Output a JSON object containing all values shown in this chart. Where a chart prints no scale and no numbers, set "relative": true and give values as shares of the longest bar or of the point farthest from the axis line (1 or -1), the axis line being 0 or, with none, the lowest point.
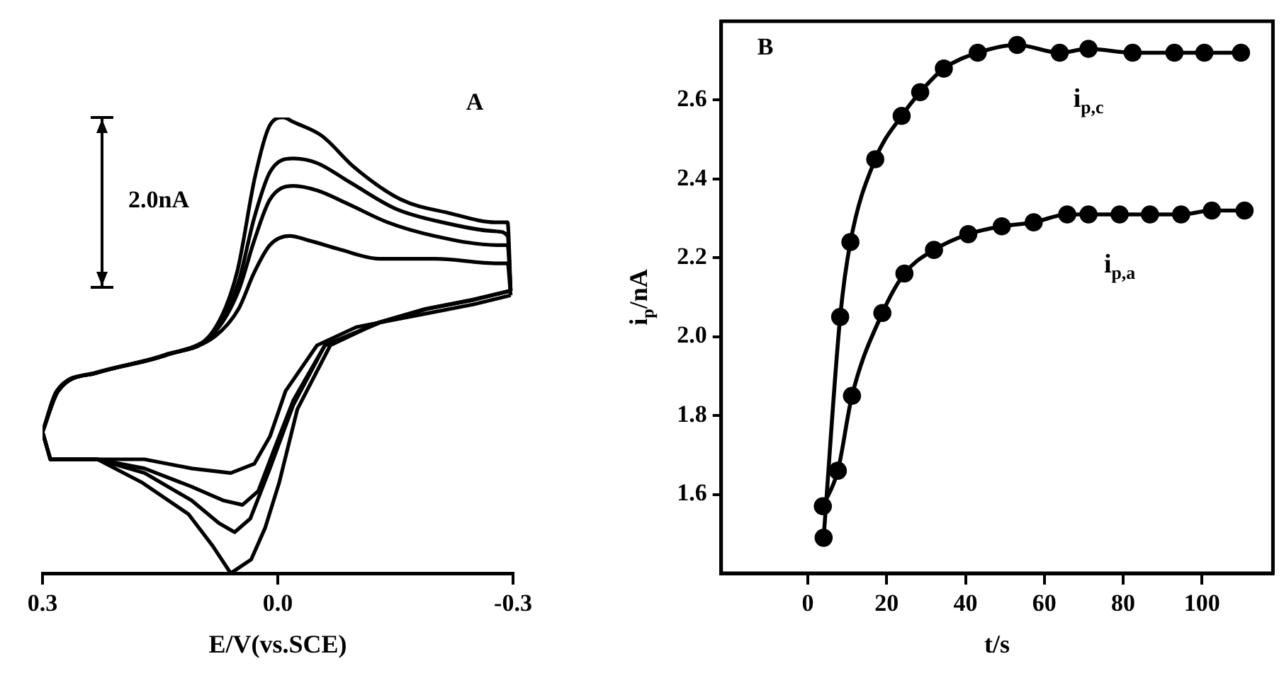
{
  "chart_data": [
    {
      "type": "line",
      "relative": true,
      "xlabel": "E/V(vs.SCE)",
      "xlim": [
        0.3,
        -0.3
      ],
      "xticks": [
        0.3,
        {
          "value": 0,
          "label": "0.0"
        },
        -0.3
      ],
      "tick_labels": "x",
      "grid": false,
      "legend": false,
      "marker": "none",
      "line_style": "solid",
      "annotations": [
        "A",
        "2.0nA"
      ],
      "series": [
        {
          "color": "#000000",
          "x": [
            0.3,
            0.29,
            0.23,
            0.17,
            0.11,
            0.06,
            0.03,
            0.01,
            -0.01,
            -0.05,
            -0.1,
            -0.19,
            -0.25,
            -0.297
          ],
          "values": [
            0.31,
            0.25,
            0.25,
            0.25,
            0.23,
            0.22,
            0.24,
            0.3,
            0.4,
            0.5,
            0.54,
            0.57,
            0.59,
            0.61
          ]
        },
        {
          "color": "#000000",
          "x": [
            -0.297,
            -0.293,
            -0.28,
            -0.2,
            -0.13,
            -0.08,
            -0.04,
            -0.015,
            0.01,
            0.03,
            0.05,
            0.08,
            0.14,
            0.23,
            0.28,
            0.3
          ],
          "values": [
            0.61,
            0.68,
            0.68,
            0.69,
            0.69,
            0.71,
            0.73,
            0.74,
            0.72,
            0.66,
            0.58,
            0.52,
            0.48,
            0.44,
            0.4,
            0.31
          ]
        },
        {
          "color": "#000000",
          "x": [
            0.3,
            0.29,
            0.23,
            0.17,
            0.11,
            0.07,
            0.045,
            0.025,
            0.005,
            -0.02,
            -0.06,
            -0.13,
            -0.19,
            -0.25,
            -0.297
          ],
          "values": [
            0.31,
            0.25,
            0.25,
            0.23,
            0.19,
            0.16,
            0.15,
            0.18,
            0.27,
            0.38,
            0.5,
            0.55,
            0.58,
            0.6,
            0.62
          ]
        },
        {
          "color": "#000000",
          "x": [
            -0.297,
            -0.293,
            -0.28,
            -0.2,
            -0.14,
            -0.09,
            -0.05,
            -0.02,
            0.01,
            0.03,
            0.05,
            0.08,
            0.14,
            0.23,
            0.28,
            0.3
          ],
          "values": [
            0.62,
            0.72,
            0.72,
            0.74,
            0.77,
            0.81,
            0.84,
            0.85,
            0.82,
            0.73,
            0.62,
            0.53,
            0.48,
            0.44,
            0.4,
            0.31
          ]
        },
        {
          "color": "#000000",
          "x": [
            0.3,
            0.29,
            0.23,
            0.17,
            0.11,
            0.075,
            0.055,
            0.035,
            0.01,
            -0.02,
            -0.06,
            -0.13,
            -0.19,
            -0.25,
            -0.297
          ],
          "values": [
            0.31,
            0.25,
            0.25,
            0.22,
            0.16,
            0.11,
            0.09,
            0.12,
            0.23,
            0.37,
            0.5,
            0.55,
            0.58,
            0.6,
            0.62
          ]
        },
        {
          "color": "#000000",
          "x": [
            -0.297,
            -0.293,
            -0.28,
            -0.21,
            -0.15,
            -0.09,
            -0.05,
            -0.02,
            0.01,
            0.03,
            0.05,
            0.08,
            0.14,
            0.23,
            0.28,
            0.3
          ],
          "values": [
            0.62,
            0.74,
            0.75,
            0.77,
            0.8,
            0.86,
            0.9,
            0.91,
            0.88,
            0.78,
            0.64,
            0.53,
            0.48,
            0.44,
            0.4,
            0.31
          ]
        },
        {
          "color": "#000000",
          "x": [
            0.3,
            0.29,
            0.23,
            0.174,
            0.114,
            0.083,
            0.06,
            0.034,
            0.016,
            -0.002,
            -0.025,
            -0.067,
            -0.128,
            -0.188,
            -0.248,
            -0.297
          ],
          "values": [
            0.31,
            0.25,
            0.25,
            0.2,
            0.13,
            0.06,
            0,
            0.03,
            0.1,
            0.2,
            0.36,
            0.5,
            0.55,
            0.58,
            0.6,
            0.62
          ]
        },
        {
          "color": "#000000",
          "x": [
            -0.297,
            -0.293,
            -0.278,
            -0.219,
            -0.157,
            -0.098,
            -0.056,
            -0.02,
            -0.007,
            0.011,
            0.029,
            0.052,
            0.083,
            0.143,
            0.233,
            0.282,
            0.3
          ],
          "values": [
            0.62,
            0.77,
            0.77,
            0.79,
            0.82,
            0.89,
            0.96,
            0.99,
            1,
            0.98,
            0.87,
            0.66,
            0.53,
            0.48,
            0.44,
            0.4,
            0.31
          ]
        }
      ]
    },
    {
      "type": "line",
      "xlabel": "t/s",
      "ylabel": "i$_{p}$/nA",
      "xlim": [
        -22,
        118
      ],
      "xticks": [
        0,
        20,
        40,
        60,
        80,
        100
      ],
      "ylim": [
        1.4,
        2.8
      ],
      "yticks": [
        1.6,
        1.8,
        {
          "value": 2.0,
          "label": "2.0"
        },
        2.2,
        2.4,
        2.6
      ],
      "grid": false,
      "legend": false,
      "marker": "circle",
      "line_style": "solid",
      "annotations": [
        "B"
      ],
      "series": [
        {
          "name": "i$_{p,c}$",
          "color": "#000000",
          "x": [
            4,
            8.2,
            10.8,
            17.1,
            23.8,
            28.5,
            34.5,
            43.1,
            53.1,
            63.9,
            71.2,
            82.4,
            93,
            100.6,
            109.9
          ],
          "values": [
            1.49,
            2.05,
            2.24,
            2.45,
            2.56,
            2.62,
            2.68,
            2.72,
            2.74,
            2.72,
            2.73,
            2.72,
            2.72,
            2.72,
            2.72
          ]
        },
        {
          "name": "i$_{p,a}$",
          "color": "#000000",
          "x": [
            3.8,
            7.6,
            11.2,
            18.9,
            24.5,
            32,
            40.7,
            49.2,
            57.3,
            65.8,
            71.2,
            79.1,
            86.8,
            94.7,
            102.5,
            110.8
          ],
          "values": [
            1.57,
            1.66,
            1.85,
            2.06,
            2.16,
            2.22,
            2.26,
            2.28,
            2.29,
            2.31,
            2.31,
            2.31,
            2.31,
            2.31,
            2.32,
            2.32
          ]
        }
      ]
    }
  ]
}
